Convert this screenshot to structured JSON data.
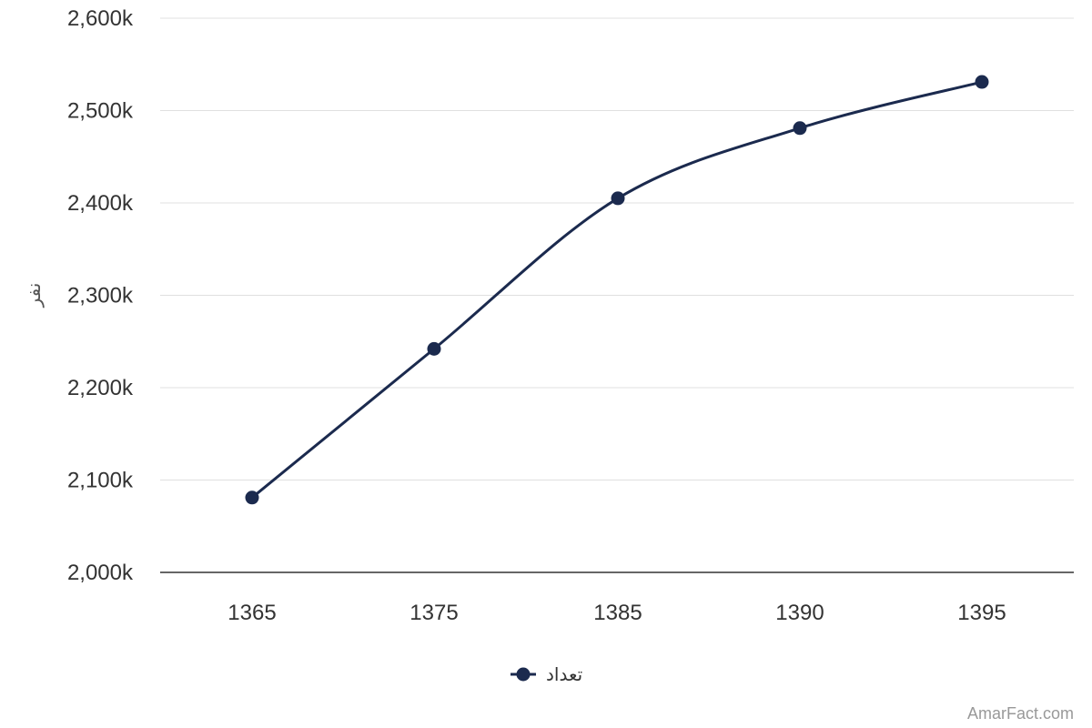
{
  "chart_data": {
    "type": "line",
    "x": [
      "1365",
      "1375",
      "1385",
      "1390",
      "1395"
    ],
    "series": [
      {
        "name": "تعداد",
        "values": [
          2081000,
          2242000,
          2405000,
          2481000,
          2531000
        ]
      }
    ],
    "ylabel": "نفر",
    "ylim": [
      2000000,
      2600000
    ],
    "ytick_labels": [
      "2,000k",
      "2,100k",
      "2,200k",
      "2,300k",
      "2,400k",
      "2,500k",
      "2,600k"
    ],
    "grid": true,
    "legend_position": "bottom",
    "line_color": "#1b2a4e",
    "credit": "AmarFact.com"
  }
}
